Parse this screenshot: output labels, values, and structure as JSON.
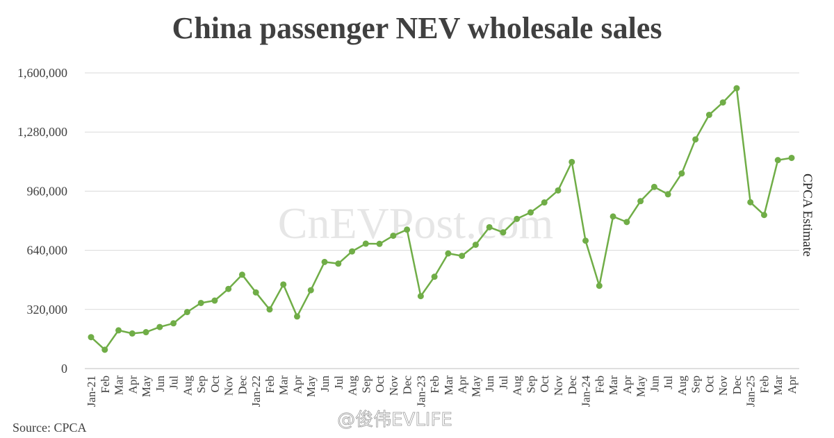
{
  "chart_data": {
    "type": "line",
    "title": "China passenger NEV wholesale sales",
    "xlabel": "",
    "ylabel": "",
    "ylim": [
      0,
      1600000
    ],
    "yticks": [
      0,
      320000,
      640000,
      960000,
      1280000,
      1600000
    ],
    "ytick_labels": [
      "0",
      "320,000",
      "640,000",
      "960,000",
      "1,280,000",
      "1,600,000"
    ],
    "grid": "horizontal",
    "legend": "none",
    "line_color": "#70ad47",
    "categories": [
      "Jan-21",
      "Feb",
      "Mar",
      "Apr",
      "May",
      "Jun",
      "Jul",
      "Aug",
      "Sep",
      "Oct",
      "Nov",
      "Dec",
      "Jan-22",
      "Feb",
      "Mar",
      "Apr",
      "May",
      "Jun",
      "Jul",
      "Aug",
      "Sep",
      "Oct",
      "Nov",
      "Dec",
      "Jan-23",
      "Feb",
      "Mar",
      "Apr",
      "May",
      "Jun",
      "Jul",
      "Aug",
      "Sep",
      "Oct",
      "Nov",
      "Dec",
      "Jan-24",
      "Feb",
      "Mar",
      "Apr",
      "May",
      "Jun",
      "Jul",
      "Aug",
      "Sep",
      "Oct",
      "Nov",
      "Dec",
      "Jan-25",
      "Feb",
      "Mar",
      "Apr"
    ],
    "values": [
      170000,
      102000,
      207000,
      190000,
      197000,
      225000,
      245000,
      306000,
      355000,
      368000,
      431000,
      508000,
      412000,
      320000,
      455000,
      282000,
      424000,
      577000,
      568000,
      634000,
      676000,
      675000,
      719000,
      752000,
      392000,
      497000,
      623000,
      610000,
      670000,
      765000,
      737000,
      810000,
      845000,
      899000,
      964000,
      1118000,
      692000,
      448000,
      823000,
      793000,
      906000,
      983000,
      943000,
      1056000,
      1240000,
      1373000,
      1440000,
      1517000,
      900000,
      831000,
      1128000,
      1140000
    ],
    "annotations": [
      {
        "text": "CPCA Estimate"
      }
    ],
    "source": "Source: CPCA",
    "watermark": "CnEVPost.com",
    "credit": "@俊伟EVLIFE"
  }
}
